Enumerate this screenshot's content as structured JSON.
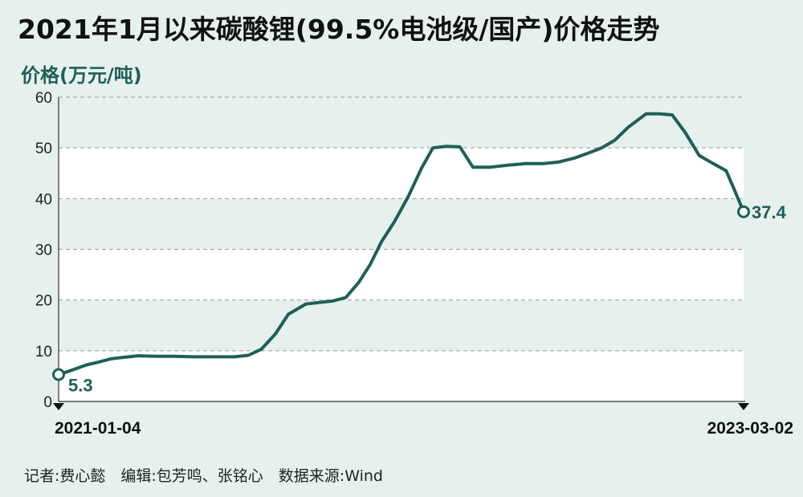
{
  "title": "2021年1月以来碳酸锂(99.5%电池级/国产)价格走势",
  "footer": "记者:费心懿　编辑:包芳鸣、张铭心　数据来源:Wind",
  "colors": {
    "line": "#1f5f57",
    "band": "#ffffff",
    "background": "#e6f1ee",
    "grid": "#9a9a9a"
  },
  "chart_data": {
    "type": "line",
    "title": "2021年1月以来碳酸锂(99.5%电池级/国产)价格走势",
    "ylabel": "价格(万元/吨)",
    "xlabel": "",
    "ylim": [
      0,
      60
    ],
    "yticks": [
      0,
      10,
      20,
      30,
      40,
      50,
      60
    ],
    "xlim": [
      "2021-01-04",
      "2023-03-02"
    ],
    "x_tick_labels": [
      "2021-01-04",
      "2023-03-02"
    ],
    "grid": "horizontal dashed, alternating white bands",
    "annotations": [
      {
        "x": "2021-01-04",
        "label": "5.3",
        "value": 5.3
      },
      {
        "x": "2023-03-02",
        "label": "37.4",
        "value": 37.4
      }
    ],
    "series": [
      {
        "x": [
          "2021-01-04",
          "2021-01-20",
          "2021-02-05",
          "2021-02-20",
          "2021-03-05",
          "2021-03-20",
          "2021-04-05",
          "2021-04-25",
          "2021-05-15",
          "2021-06-10",
          "2021-07-05",
          "2021-07-25",
          "2021-08-10",
          "2021-08-25",
          "2021-09-10",
          "2021-09-25",
          "2021-10-15",
          "2021-10-30",
          "2021-11-15",
          "2021-11-30",
          "2021-12-15",
          "2021-12-28",
          "2022-01-10",
          "2022-01-25",
          "2022-02-10",
          "2022-02-25",
          "2022-03-10",
          "2022-03-25",
          "2022-04-10",
          "2022-04-25",
          "2022-05-15",
          "2022-06-05",
          "2022-06-25",
          "2022-07-15",
          "2022-08-01",
          "2022-08-20",
          "2022-09-05",
          "2022-09-20",
          "2022-10-05",
          "2022-10-20",
          "2022-11-10",
          "2022-11-25",
          "2022-12-10",
          "2022-12-25",
          "2023-01-10",
          "2023-01-25",
          "2023-02-10",
          "2023-02-20",
          "2023-03-02"
        ],
        "values": [
          5.3,
          6.2,
          7.2,
          7.8,
          8.4,
          8.7,
          9.0,
          8.9,
          8.9,
          8.8,
          8.8,
          8.8,
          9.1,
          10.3,
          13.3,
          17.2,
          19.2,
          19.5,
          19.8,
          20.5,
          23.5,
          27.0,
          31.5,
          35.5,
          40.5,
          46.0,
          50.0,
          50.3,
          50.2,
          46.2,
          46.2,
          46.6,
          46.9,
          46.9,
          47.2,
          48.0,
          49.0,
          50.0,
          51.5,
          54.0,
          56.7,
          56.7,
          56.5,
          53.0,
          48.5,
          47.0,
          45.5,
          41.5,
          37.4
        ]
      }
    ]
  }
}
